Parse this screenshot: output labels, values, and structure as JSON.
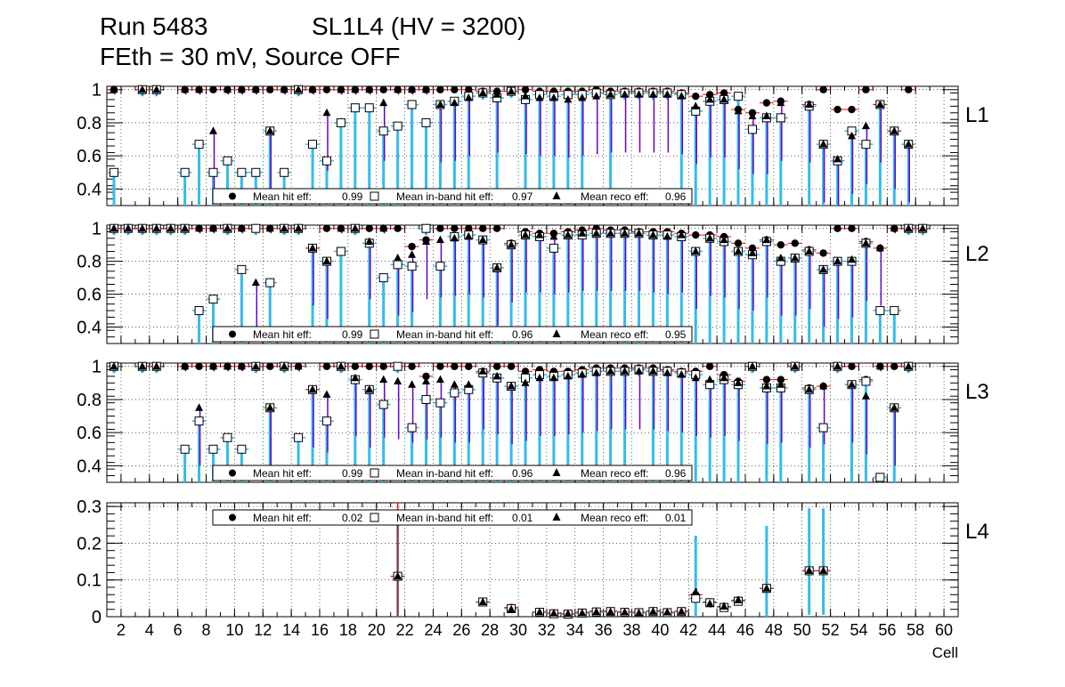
{
  "chart_data": {
    "type": "scatter",
    "title_line1_run": "Run 5483",
    "title_line1_chamber": "SL1L4 (HV = 3200)",
    "title_line2": "FEth = 30 mV, Source OFF",
    "xlabel": "Cell",
    "xlim": [
      1,
      61
    ],
    "x_ticks": [
      "2",
      "4",
      "6",
      "8",
      "10",
      "12",
      "14",
      "16",
      "18",
      "20",
      "22",
      "24",
      "26",
      "28",
      "30",
      "32",
      "34",
      "36",
      "38",
      "40",
      "42",
      "44",
      "46",
      "48",
      "50",
      "52",
      "54",
      "56",
      "58",
      "60"
    ],
    "legend_labels": {
      "hit": "Mean hit  eff:",
      "inband": "Mean in-band hit eff:",
      "reco": "Mean reco eff:"
    },
    "colors": {
      "hit_err": "#ff0000",
      "inband_err": "#33bbee",
      "reco_err": "#6600cc",
      "marker": "#000000",
      "inband_fill": "#ffffff"
    },
    "panels": [
      {
        "name": "L1",
        "ylim": [
          0.3,
          1.02
        ],
        "y_ticks": [
          "0.4",
          "0.6",
          "0.8",
          "1"
        ],
        "legend_values": {
          "hit": "0.99",
          "inband": "0.97",
          "reco": "0.96"
        },
        "series": {
          "cells": [
            1,
            3,
            4,
            6,
            7,
            8,
            9,
            10,
            11,
            12,
            13,
            14,
            15,
            16,
            17,
            18,
            19,
            20,
            21,
            22,
            23,
            24,
            25,
            26,
            27,
            28,
            29,
            30,
            31,
            32,
            33,
            34,
            35,
            36,
            37,
            38,
            39,
            40,
            41,
            42,
            43,
            44,
            45,
            46,
            47,
            48,
            50,
            51,
            52,
            53,
            54,
            55,
            56,
            57
          ],
          "hit": [
            1,
            1,
            1,
            1,
            1,
            1,
            1,
            1,
            1,
            1,
            1,
            1,
            1,
            1,
            1,
            1,
            1,
            1,
            1,
            1,
            1,
            1,
            1,
            1,
            0.99,
            0.99,
            0.99,
            1,
            0.99,
            0.99,
            0.99,
            0.99,
            1,
            0.99,
            0.99,
            0.99,
            0.99,
            0.99,
            0.98,
            0.96,
            0.97,
            0.98,
            0.88,
            0.86,
            0.92,
            0.93,
            0.91,
            1,
            0.88,
            0.88,
            1,
            0.91,
            0.75,
            1
          ],
          "inband": [
            0.5,
            1,
            1,
            0.5,
            0.67,
            0.5,
            0.57,
            0.5,
            0.5,
            0.75,
            0.5,
            1,
            0.67,
            0.57,
            0.8,
            0.89,
            0.89,
            0.75,
            0.78,
            0.91,
            0.8,
            0.91,
            0.93,
            0.96,
            0.98,
            0.95,
            0.99,
            0.94,
            0.97,
            0.96,
            0.97,
            0.97,
            0.98,
            0.97,
            0.98,
            0.98,
            0.98,
            0.98,
            0.97,
            0.87,
            0.93,
            0.94,
            0.96,
            0.76,
            0.83,
            0.83,
            0.9,
            0.67,
            0.57,
            0.75,
            0.67,
            0.91,
            0.75,
            0.67
          ],
          "reco": [
            1,
            1,
            1,
            1,
            1,
            0.75,
            1,
            1,
            1,
            0.75,
            1,
            1,
            1,
            0.86,
            1,
            1,
            1,
            0.92,
            1,
            1,
            1,
            0.91,
            0.92,
            0.95,
            0.98,
            0.97,
            0.99,
            0.96,
            0.95,
            0.95,
            0.94,
            0.95,
            0.96,
            0.97,
            0.97,
            0.97,
            0.97,
            0.97,
            0.96,
            0.9,
            0.94,
            0.94,
            0.87,
            0.84,
            0.84,
            0.92,
            0.91,
            0.67,
            0.58,
            0.72,
            0.78,
            0.91,
            0.75,
            0.67
          ]
        }
      },
      {
        "name": "L2",
        "ylim": [
          0.3,
          1.02
        ],
        "y_ticks": [
          "0.4",
          "0.6",
          "0.8",
          "1"
        ],
        "legend_values": {
          "hit": "0.99",
          "inband": "0.96",
          "reco": "0.95"
        },
        "series": {
          "cells": [
            1,
            2,
            3,
            4,
            5,
            6,
            7,
            8,
            9,
            10,
            11,
            12,
            13,
            14,
            15,
            16,
            17,
            18,
            19,
            20,
            21,
            22,
            23,
            24,
            25,
            26,
            27,
            28,
            29,
            30,
            31,
            32,
            33,
            34,
            35,
            36,
            37,
            38,
            39,
            40,
            41,
            42,
            43,
            44,
            45,
            46,
            47,
            48,
            49,
            50,
            51,
            52,
            53,
            54,
            55,
            56,
            57,
            58
          ],
          "hit": [
            1,
            1,
            1,
            1,
            1,
            1,
            1,
            1,
            1,
            1,
            1,
            1,
            1,
            1,
            0.88,
            1,
            1,
            1,
            1,
            1,
            1,
            0.89,
            0.93,
            1,
            1,
            1,
            1,
            1,
            0.91,
            0.98,
            0.97,
            0.97,
            0.98,
            0.99,
            1,
            0.99,
            0.99,
            0.98,
            0.98,
            0.98,
            0.97,
            0.96,
            0.96,
            0.95,
            0.91,
            0.88,
            0.93,
            0.9,
            0.91,
            0.87,
            0.85,
            1,
            1,
            0.92,
            0.88,
            1,
            1,
            1
          ],
          "inband": [
            1,
            1,
            1,
            1,
            1,
            1,
            0.5,
            0.57,
            1,
            0.75,
            1,
            0.67,
            1,
            1,
            0.88,
            0.8,
            0.86,
            1,
            0.91,
            0.7,
            0.78,
            0.77,
            1,
            0.77,
            0.95,
            0.96,
            0.93,
            0.76,
            0.9,
            0.96,
            0.95,
            0.88,
            0.96,
            0.96,
            0.97,
            0.97,
            0.97,
            0.97,
            0.96,
            0.96,
            0.95,
            0.86,
            0.94,
            0.92,
            0.86,
            0.84,
            0.92,
            0.8,
            0.82,
            0.86,
            0.75,
            0.8,
            0.8,
            0.91,
            0.5,
            0.5,
            1,
            1
          ],
          "reco": [
            1,
            1,
            1,
            1,
            1,
            1,
            1,
            1,
            1,
            1,
            0.67,
            1,
            1,
            1,
            0.88,
            0.8,
            1,
            1,
            0.92,
            1,
            0.82,
            0.84,
            0.92,
            0.93,
            0.94,
            0.95,
            0.93,
            0.76,
            0.9,
            0.96,
            0.96,
            0.95,
            0.96,
            0.97,
            0.97,
            0.97,
            0.97,
            0.97,
            0.96,
            0.95,
            0.96,
            0.86,
            0.94,
            0.93,
            0.86,
            0.85,
            0.93,
            0.82,
            0.82,
            0.86,
            0.75,
            0.8,
            0.81,
            0.91,
            0.88,
            1,
            1,
            1
          ]
        }
      },
      {
        "name": "L3",
        "ylim": [
          0.3,
          1.02
        ],
        "y_ticks": [
          "0.4",
          "0.6",
          "0.8",
          "1"
        ],
        "legend_values": {
          "hit": "0.99",
          "inband": "0.96",
          "reco": "0.96"
        },
        "series": {
          "cells": [
            1,
            3,
            4,
            6,
            7,
            8,
            9,
            10,
            11,
            12,
            13,
            14,
            15,
            16,
            17,
            18,
            19,
            20,
            21,
            22,
            23,
            24,
            25,
            26,
            27,
            28,
            29,
            30,
            31,
            32,
            33,
            34,
            35,
            36,
            37,
            38,
            39,
            40,
            41,
            42,
            43,
            44,
            45,
            46,
            47,
            48,
            49,
            50,
            51,
            52,
            53,
            54,
            55,
            56,
            57
          ],
          "hit": [
            1,
            1,
            1,
            1,
            1,
            1,
            1,
            1,
            1,
            1,
            1,
            1,
            0.86,
            1,
            1,
            1,
            1,
            1,
            1,
            1,
            0.94,
            1,
            1,
            1,
            0.97,
            1,
            1,
            0.97,
            0.98,
            0.97,
            0.97,
            0.98,
            0.99,
            0.99,
            0.99,
            0.99,
            0.99,
            0.98,
            0.97,
            0.97,
            1,
            0.95,
            0.91,
            1,
            0.92,
            0.92,
            1,
            0.87,
            0.88,
            1,
            1,
            0.92,
            1,
            1,
            1
          ],
          "inband": [
            1,
            1,
            1,
            0.5,
            0.67,
            0.5,
            0.57,
            0.5,
            1,
            0.75,
            1,
            0.57,
            0.86,
            0.67,
            1,
            0.92,
            0.86,
            0.77,
            1,
            0.63,
            0.8,
            0.78,
            0.84,
            0.86,
            0.96,
            0.93,
            0.88,
            0.93,
            0.95,
            0.94,
            0.95,
            0.96,
            0.97,
            0.97,
            0.97,
            0.98,
            0.97,
            0.97,
            0.96,
            0.95,
            0.89,
            0.92,
            0.89,
            1,
            0.87,
            0.87,
            1,
            0.86,
            0.63,
            1,
            0.89,
            0.91,
            0.33,
            0.75,
            1
          ],
          "reco": [
            1,
            1,
            1,
            1,
            0.75,
            1,
            1,
            1,
            1,
            0.75,
            1,
            1,
            0.86,
            0.83,
            1,
            0.93,
            0.86,
            0.92,
            0.91,
            0.89,
            0.91,
            0.92,
            0.89,
            0.89,
            0.97,
            0.94,
            0.88,
            0.9,
            0.93,
            0.93,
            0.94,
            0.95,
            0.96,
            0.97,
            0.97,
            0.97,
            0.97,
            0.96,
            0.95,
            0.93,
            0.92,
            0.93,
            0.9,
            1,
            0.88,
            0.89,
            1,
            0.86,
            0.88,
            1,
            0.89,
            0.82,
            1,
            0.75,
            1
          ]
        }
      },
      {
        "name": "L4",
        "ylim": [
          0,
          0.31
        ],
        "y_ticks": [
          "0",
          "0.1",
          "0.2",
          "0.3"
        ],
        "legend_values": {
          "hit": "0.02",
          "inband": "0.01",
          "reco": "0.01"
        },
        "series": {
          "cells": [
            21,
            27,
            29,
            31,
            32,
            33,
            34,
            35,
            36,
            37,
            38,
            39,
            40,
            41,
            42,
            43,
            44,
            45,
            47,
            50,
            51
          ],
          "hit": [
            0.11,
            0.04,
            0.025,
            0.013,
            0.01,
            0.008,
            0.012,
            0.015,
            0.015,
            0.013,
            0.012,
            0.016,
            0.012,
            0.015,
            0.06,
            0.04,
            0.028,
            0.045,
            0.077,
            0.125,
            0.125
          ],
          "inband": [
            0.11,
            0.04,
            0.022,
            0.012,
            0.008,
            0.007,
            0.01,
            0.013,
            0.014,
            0.012,
            0.011,
            0.014,
            0.011,
            0.014,
            0.05,
            0.038,
            0.025,
            0.042,
            0.077,
            0.125,
            0.125
          ],
          "reco": [
            0.11,
            0.04,
            0.02,
            0.012,
            0.009,
            0.008,
            0.01,
            0.013,
            0.013,
            0.012,
            0.01,
            0.014,
            0.012,
            0.014,
            0.067,
            0.035,
            0.028,
            0.045,
            0.077,
            0.125,
            0.125
          ]
        }
      }
    ]
  }
}
